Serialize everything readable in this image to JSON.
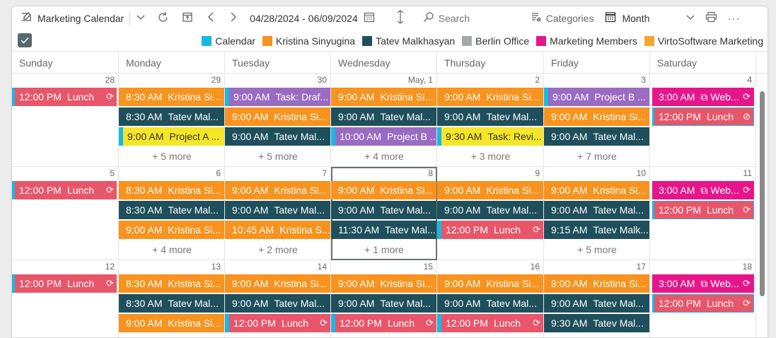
{
  "toolbar": {
    "title": "Marketing Calendar",
    "date_range": "04/28/2024 - 06/09/2024",
    "search_placeholder": "Search",
    "categories_label": "Categories",
    "view_label": "Month"
  },
  "legend": [
    {
      "label": "Calendar",
      "color": "#16b9e6"
    },
    {
      "label": "Kristina Sinyugina",
      "color": "#f7931e"
    },
    {
      "label": "Tatev Malkhasyan",
      "color": "#1f4f5c"
    },
    {
      "label": "Berlin Office",
      "color": "#a3a8ab"
    },
    {
      "label": "Marketing Members",
      "color": "#e6168a"
    },
    {
      "label": "VirtoSoftware Marketing",
      "color": "#f7a531"
    }
  ],
  "days": [
    "Sunday",
    "Monday",
    "Tuesday",
    "Wednesday",
    "Thursday",
    "Friday",
    "Saturday"
  ],
  "weeks": [
    {
      "dates": [
        "28",
        "29",
        "30",
        "May, 1",
        "2",
        "3",
        "4"
      ],
      "cells": [
        {
          "events": [
            {
              "time": "12:00 PM",
              "title": "Lunch",
              "color": "#e8566a",
              "edge": "#16b9e6",
              "rec": "⟳"
            }
          ],
          "more": ""
        },
        {
          "events": [
            {
              "time": "8:30 AM",
              "title": "Kristina Si...",
              "color": "#f7931e"
            },
            {
              "time": "8:30 AM",
              "title": "Tatev Mal...",
              "color": "#1f4f5c"
            },
            {
              "time": "9:00 AM",
              "title": "Project A ...",
              "color": "#f5e629",
              "text": "#333",
              "edge": "#16b9e6"
            }
          ],
          "more": "+ 5 more"
        },
        {
          "events": [
            {
              "time": "9:00 AM",
              "title": "Task: Draf...",
              "color": "#9a6bc2",
              "edge": "#16b9e6"
            },
            {
              "time": "9:00 AM",
              "title": "Kristina Si...",
              "color": "#f7931e"
            },
            {
              "time": "9:00 AM",
              "title": "Tatev Mal...",
              "color": "#1f4f5c"
            }
          ],
          "more": "+ 5 more"
        },
        {
          "events": [
            {
              "time": "9:00 AM",
              "title": "Kristina Si...",
              "color": "#f7931e"
            },
            {
              "time": "9:00 AM",
              "title": "Tatev Mal...",
              "color": "#1f4f5c"
            },
            {
              "time": "10:00 AM",
              "title": "Project B ...",
              "color": "#9a6bc2",
              "edge": "#16b9e6"
            }
          ],
          "more": "+ 4 more"
        },
        {
          "events": [
            {
              "time": "9:00 AM",
              "title": "Kristina Si...",
              "color": "#f7931e"
            },
            {
              "time": "9:00 AM",
              "title": "Tatev Mal...",
              "color": "#1f4f5c"
            },
            {
              "time": "9:30 AM",
              "title": "Task: Revi...",
              "color": "#f5e629",
              "text": "#333",
              "edge": "#16b9e6"
            }
          ],
          "more": "+ 3 more"
        },
        {
          "events": [
            {
              "time": "9:00 AM",
              "title": "Project B ...",
              "color": "#9a6bc2",
              "edge": "#16b9e6"
            },
            {
              "time": "9:00 AM",
              "title": "Kristina Si...",
              "color": "#f7931e"
            },
            {
              "time": "9:00 AM",
              "title": "Tatev Mal...",
              "color": "#1f4f5c"
            }
          ],
          "more": "+ 7 more"
        },
        {
          "events": [
            {
              "time": "3:00 AM",
              "title": "Web...",
              "color": "#e6168a",
              "edge": "#e6168a",
              "teams": "⧉",
              "rec": "⟳"
            },
            {
              "time": "12:00 PM",
              "title": "Lunch",
              "color": "#e8566a",
              "edge": "#16b9e6",
              "rec": "⊘"
            }
          ],
          "more": ""
        }
      ]
    },
    {
      "dates": [
        "5",
        "6",
        "7",
        "8",
        "9",
        "10",
        "11"
      ],
      "cells": [
        {
          "events": [
            {
              "time": "12:00 PM",
              "title": "Lunch",
              "color": "#e8566a",
              "edge": "#16b9e6",
              "rec": "⟳"
            }
          ],
          "more": ""
        },
        {
          "events": [
            {
              "time": "8:30 AM",
              "title": "Kristina Si...",
              "color": "#f7931e"
            },
            {
              "time": "8:30 AM",
              "title": "Tatev Mal...",
              "color": "#1f4f5c"
            },
            {
              "time": "9:00 AM",
              "title": "Kristina Si...",
              "color": "#f7931e"
            }
          ],
          "more": "+ 4 more"
        },
        {
          "events": [
            {
              "time": "9:00 AM",
              "title": "Kristina Si...",
              "color": "#f7931e"
            },
            {
              "time": "9:00 AM",
              "title": "Tatev Mal...",
              "color": "#1f4f5c"
            },
            {
              "time": "10:45 AM",
              "title": "Kristina S...",
              "color": "#f7931e"
            }
          ],
          "more": "+ 2 more"
        },
        {
          "events": [
            {
              "time": "9:00 AM",
              "title": "Kristina Si...",
              "color": "#f7931e"
            },
            {
              "time": "9:00 AM",
              "title": "Tatev Mal...",
              "color": "#1f4f5c"
            },
            {
              "time": "11:30 AM",
              "title": "Tatev Mal...",
              "color": "#1f4f5c"
            }
          ],
          "more": "+ 1 more"
        },
        {
          "events": [
            {
              "time": "9:00 AM",
              "title": "Kristina Si...",
              "color": "#f7931e"
            },
            {
              "time": "9:00 AM",
              "title": "Tatev Mal...",
              "color": "#1f4f5c"
            },
            {
              "time": "12:00 PM",
              "title": "Lunch",
              "color": "#e8566a",
              "edge": "#16b9e6",
              "rec": "⟳"
            }
          ],
          "more": ""
        },
        {
          "events": [
            {
              "time": "9:00 AM",
              "title": "Kristina Si...",
              "color": "#f7931e"
            },
            {
              "time": "9:00 AM",
              "title": "Tatev Mal...",
              "color": "#1f4f5c"
            },
            {
              "time": "9:15 AM",
              "title": "Tatev Malk...",
              "color": "#1f4f5c"
            }
          ],
          "more": "+ 5 more"
        },
        {
          "events": [
            {
              "time": "3:00 AM",
              "title": "Web...",
              "color": "#e6168a",
              "edge": "#e6168a",
              "teams": "⧉",
              "rec": "⟳"
            },
            {
              "time": "12:00 PM",
              "title": "Lunch",
              "color": "#e8566a",
              "edge": "#16b9e6",
              "rec": "⟳"
            }
          ],
          "more": ""
        }
      ]
    },
    {
      "dates": [
        "12",
        "13",
        "14",
        "15",
        "16",
        "17",
        "18"
      ],
      "cells": [
        {
          "events": [
            {
              "time": "12:00 PM",
              "title": "Lunch",
              "color": "#e8566a",
              "edge": "#16b9e6",
              "rec": "⟳"
            }
          ],
          "more": ""
        },
        {
          "events": [
            {
              "time": "8:30 AM",
              "title": "Kristina Si...",
              "color": "#f7931e"
            },
            {
              "time": "8:30 AM",
              "title": "Tatev Mal...",
              "color": "#1f4f5c"
            },
            {
              "time": "9:00 AM",
              "title": "Kristina Si...",
              "color": "#f7931e"
            }
          ],
          "more": ""
        },
        {
          "events": [
            {
              "time": "9:00 AM",
              "title": "Kristina Si...",
              "color": "#f7931e"
            },
            {
              "time": "9:00 AM",
              "title": "Tatev Mal...",
              "color": "#1f4f5c"
            },
            {
              "time": "12:00 PM",
              "title": "Lunch",
              "color": "#e8566a",
              "edge": "#16b9e6",
              "rec": "⟳"
            }
          ],
          "more": ""
        },
        {
          "events": [
            {
              "time": "9:00 AM",
              "title": "Kristina Si...",
              "color": "#f7931e"
            },
            {
              "time": "9:00 AM",
              "title": "Tatev Mal...",
              "color": "#1f4f5c"
            },
            {
              "time": "12:00 PM",
              "title": "Lunch",
              "color": "#e8566a",
              "edge": "#16b9e6",
              "rec": "⟳"
            }
          ],
          "more": ""
        },
        {
          "events": [
            {
              "time": "9:00 AM",
              "title": "Kristina Si...",
              "color": "#f7931e"
            },
            {
              "time": "9:00 AM",
              "title": "Tatev Mal...",
              "color": "#1f4f5c"
            },
            {
              "time": "12:00 PM",
              "title": "Lunch",
              "color": "#e8566a",
              "edge": "#16b9e6",
              "rec": "⟳"
            }
          ],
          "more": ""
        },
        {
          "events": [
            {
              "time": "9:00 AM",
              "title": "Kristina Si...",
              "color": "#f7931e"
            },
            {
              "time": "9:00 AM",
              "title": "Tatev Mal...",
              "color": "#1f4f5c"
            },
            {
              "time": "9:30 AM",
              "title": "Tatev Mal...",
              "color": "#1f4f5c"
            }
          ],
          "more": ""
        },
        {
          "events": [
            {
              "time": "3:00 AM",
              "title": "Web...",
              "color": "#e6168a",
              "edge": "#e6168a",
              "teams": "⧉",
              "rec": "⟳"
            },
            {
              "time": "12:00 PM",
              "title": "Lunch",
              "color": "#e8566a",
              "edge": "#16b9e6",
              "rec": "⟳"
            }
          ],
          "more": ""
        }
      ]
    }
  ]
}
